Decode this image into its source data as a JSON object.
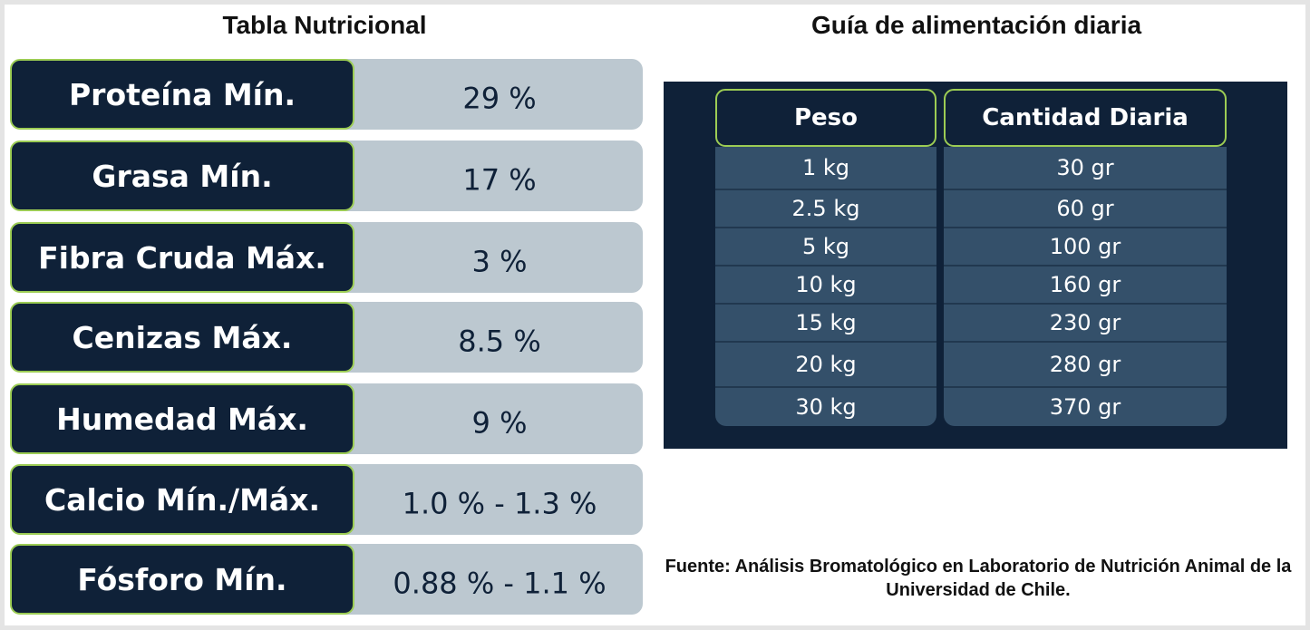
{
  "left_title": "Tabla Nutricional",
  "right_title": "Guía de alimentación diaria",
  "nutrition": [
    {
      "label": "Proteína Mín.",
      "value": "29 %"
    },
    {
      "label": "Grasa Mín.",
      "value": "17 %"
    },
    {
      "label": "Fibra Cruda Máx.",
      "value": "3 %"
    },
    {
      "label": "Cenizas Máx.",
      "value": "8.5 %"
    },
    {
      "label": "Humedad Máx.",
      "value": "9 %"
    },
    {
      "label": "Calcio Mín./Máx.",
      "value": "1.0 % - 1.3 %"
    },
    {
      "label": "Fósforo Mín.",
      "value": "0.88 % - 1.1 %"
    }
  ],
  "guide": {
    "headers": [
      "Peso",
      "Cantidad Diaria"
    ],
    "rows": [
      [
        "1 kg",
        "30 gr"
      ],
      [
        "2.5 kg",
        "60 gr"
      ],
      [
        "5 kg",
        "100 gr"
      ],
      [
        "10 kg",
        "160 gr"
      ],
      [
        "15 kg",
        "230 gr"
      ],
      [
        "20 kg",
        "280 gr"
      ],
      [
        "30 kg",
        "370 gr"
      ]
    ]
  },
  "source": "Fuente: Análisis Bromatológico en Laboratorio de Nutrición Animal de la Universidad de Chile.",
  "colors": {
    "navy": "#0f2138",
    "label_border": "#9ccc54",
    "value_bg": "#bcc8d0",
    "guide_cell": "#34506a"
  }
}
